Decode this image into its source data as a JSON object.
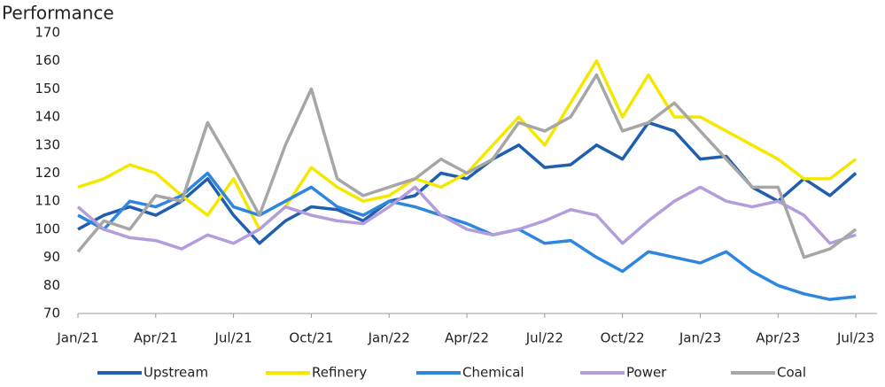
{
  "chart_data": {
    "type": "line",
    "title": "Performance",
    "categories": [
      "Jan/21",
      null,
      null,
      "Apr/21",
      null,
      null,
      "Jul/21",
      null,
      null,
      "Oct/21",
      null,
      null,
      "Jan/22",
      null,
      null,
      "Apr/22",
      null,
      null,
      "Jul/22",
      null,
      null,
      "Oct/22",
      null,
      null,
      "Jan/23",
      null,
      null,
      "Apr/23",
      null,
      null,
      "Jul/23"
    ],
    "series": [
      {
        "name": "Upstream",
        "color": "#1f5fad",
        "values": [
          100,
          105,
          108,
          105,
          110,
          118,
          105,
          95,
          103,
          108,
          107,
          103,
          110,
          112,
          120,
          118,
          125,
          130,
          122,
          123,
          130,
          125,
          138,
          135,
          125,
          126,
          115,
          110,
          118,
          112,
          120
        ]
      },
      {
        "name": "Refinery",
        "color": "#f5e800",
        "values": [
          115,
          118,
          123,
          120,
          112,
          105,
          118,
          100,
          108,
          122,
          115,
          110,
          112,
          118,
          115,
          120,
          130,
          140,
          130,
          145,
          160,
          140,
          155,
          140,
          140,
          135,
          130,
          125,
          118,
          118,
          125
        ]
      },
      {
        "name": "Chemical",
        "color": "#2e86de",
        "values": [
          105,
          100,
          110,
          108,
          112,
          120,
          108,
          105,
          110,
          115,
          108,
          105,
          110,
          108,
          105,
          102,
          98,
          100,
          95,
          96,
          90,
          85,
          92,
          90,
          88,
          92,
          85,
          80,
          77,
          75,
          76
        ]
      },
      {
        "name": "Power",
        "color": "#b39ddb",
        "values": [
          108,
          100,
          97,
          96,
          93,
          98,
          95,
          100,
          108,
          105,
          103,
          102,
          108,
          115,
          105,
          100,
          98,
          100,
          103,
          107,
          105,
          95,
          103,
          110,
          115,
          110,
          108,
          110,
          105,
          95,
          98
        ]
      },
      {
        "name": "Coal",
        "color": "#a6a6a6",
        "values": [
          92,
          103,
          100,
          112,
          110,
          138,
          122,
          105,
          130,
          150,
          118,
          112,
          115,
          118,
          125,
          120,
          125,
          138,
          135,
          140,
          155,
          135,
          138,
          145,
          135,
          125,
          115,
          115,
          90,
          93,
          100
        ]
      }
    ],
    "ylim": [
      70,
      170
    ],
    "yticks": [
      70,
      80,
      90,
      100,
      110,
      120,
      130,
      140,
      150,
      160,
      170
    ]
  }
}
